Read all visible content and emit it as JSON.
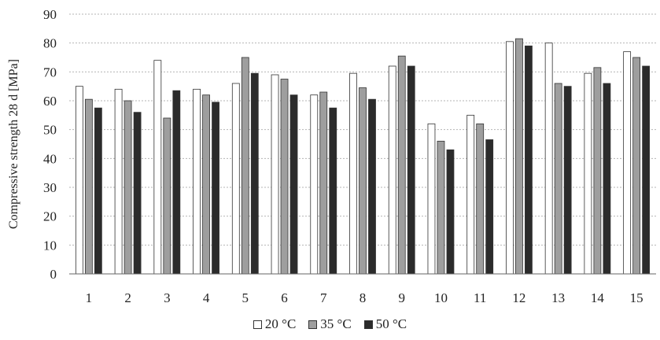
{
  "chart_data": {
    "type": "bar",
    "title": "",
    "xlabel": "",
    "ylabel": "Compressive strength  28 d [MPa]",
    "ylim": [
      0,
      90
    ],
    "yticks": [
      0,
      10,
      20,
      30,
      40,
      50,
      60,
      70,
      80,
      90
    ],
    "grid": "horizontal dotted",
    "legend_position": "bottom-center",
    "categories": [
      "1",
      "2",
      "3",
      "4",
      "5",
      "6",
      "7",
      "8",
      "9",
      "10",
      "11",
      "12",
      "13",
      "14",
      "15"
    ],
    "series": [
      {
        "name": "20 °C",
        "color": "#ffffff",
        "values": [
          65,
          64,
          74,
          64,
          66,
          69,
          62,
          69.5,
          72,
          52,
          55,
          80.5,
          80,
          69.5,
          77
        ]
      },
      {
        "name": "35 °C",
        "color": "#9e9e9e",
        "values": [
          60.5,
          60,
          54,
          62,
          75,
          67.5,
          63,
          64.5,
          75.5,
          46,
          52,
          81.5,
          66,
          71.5,
          75
        ]
      },
      {
        "name": "50 °C",
        "color": "#2b2b2b",
        "values": [
          57.5,
          56,
          63.5,
          59.5,
          69.5,
          62,
          57.5,
          60.5,
          72,
          43,
          46.5,
          79,
          65,
          66,
          72
        ]
      }
    ]
  }
}
